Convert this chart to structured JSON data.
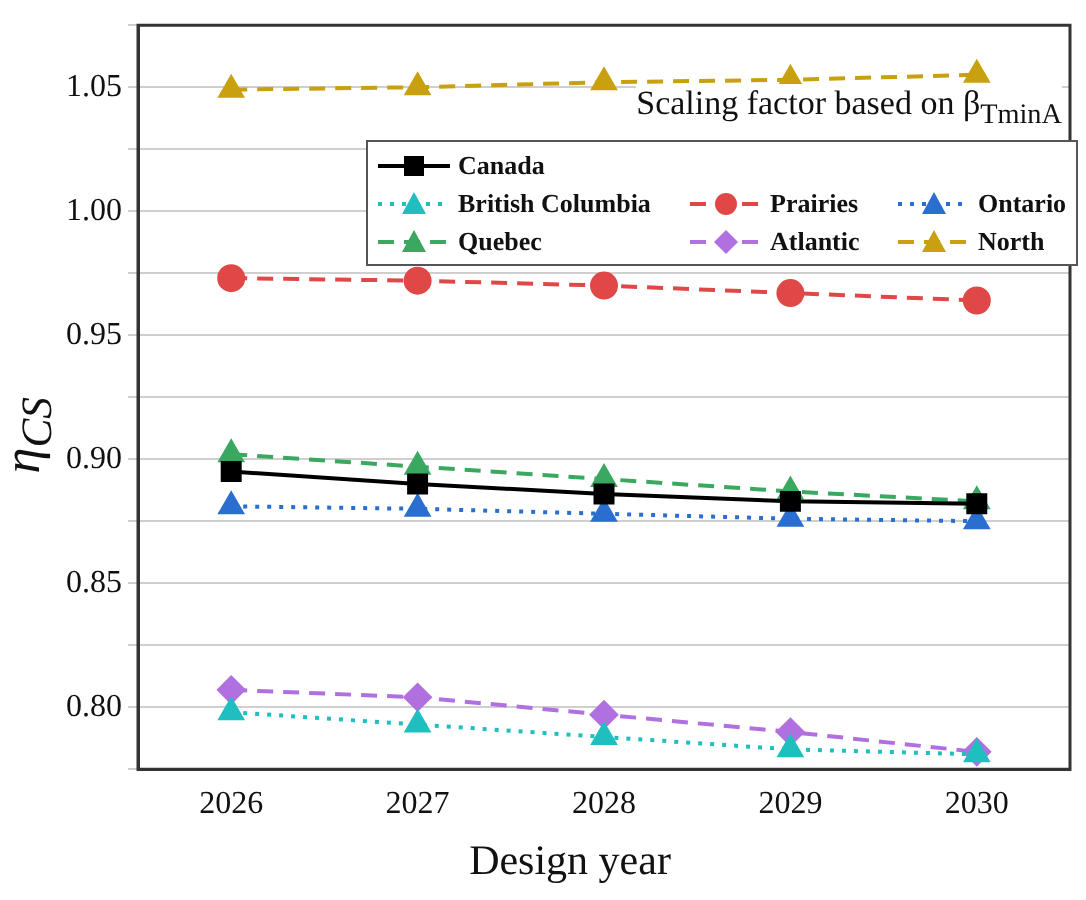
{
  "chart_data": {
    "type": "line",
    "xlabel": "Design year",
    "ylabel": "η$_{CS}$",
    "annotations": [
      "Scaling factor based on β$_{TminA}$"
    ],
    "x": [
      2026,
      2027,
      2028,
      2029,
      2030
    ],
    "xlim": [
      2025.5,
      2030.5
    ],
    "xticks": [
      2026,
      2027,
      2028,
      2029,
      2030
    ],
    "ylim": [
      0.775,
      1.075
    ],
    "yticks": [
      {
        "value": 0.775,
        "label": null
      },
      {
        "value": 0.8,
        "label": "0.80"
      },
      {
        "value": 0.825,
        "label": null
      },
      {
        "value": 0.85,
        "label": "0.85"
      },
      {
        "value": 0.875,
        "label": null
      },
      {
        "value": 0.9,
        "label": "0.90"
      },
      {
        "value": 0.925,
        "label": null
      },
      {
        "value": 0.95,
        "label": "0.95"
      },
      {
        "value": 0.975,
        "label": null
      },
      {
        "value": 1.0,
        "label": "1.00"
      },
      {
        "value": 1.025,
        "label": null
      },
      {
        "value": 1.05,
        "label": "1.05"
      },
      {
        "value": 1.075,
        "label": null
      }
    ],
    "grid": "y",
    "legend": "top right",
    "series": [
      {
        "name": "Canada",
        "color": "#000000",
        "marker": "square",
        "line_style": "solid",
        "values": [
          0.895,
          0.89,
          0.886,
          0.883,
          0.882
        ]
      },
      {
        "name": "British Columbia",
        "color": "#1fbfbf",
        "marker": "triangle",
        "line_style": "dotted",
        "values": [
          0.798,
          0.793,
          0.788,
          0.783,
          0.781
        ]
      },
      {
        "name": "Prairies",
        "color": "#e04848",
        "marker": "circle",
        "line_style": "dashed",
        "values": [
          0.973,
          0.972,
          0.97,
          0.967,
          0.964
        ]
      },
      {
        "name": "Ontario",
        "color": "#2a6fd0",
        "marker": "triangle",
        "line_style": "dotted",
        "values": [
          0.881,
          0.88,
          0.878,
          0.876,
          0.875
        ]
      },
      {
        "name": "Quebec",
        "color": "#3aa860",
        "marker": "triangle",
        "line_style": "dashed",
        "values": [
          0.902,
          0.897,
          0.892,
          0.887,
          0.883
        ]
      },
      {
        "name": "Atlantic",
        "color": "#b070e0",
        "marker": "diamond",
        "line_style": "dashed",
        "values": [
          0.807,
          0.804,
          0.797,
          0.79,
          0.782
        ]
      },
      {
        "name": "North",
        "color": "#c8a010",
        "marker": "triangle",
        "line_style": "dashed",
        "values": [
          1.049,
          1.05,
          1.052,
          1.053,
          1.055
        ]
      }
    ]
  }
}
